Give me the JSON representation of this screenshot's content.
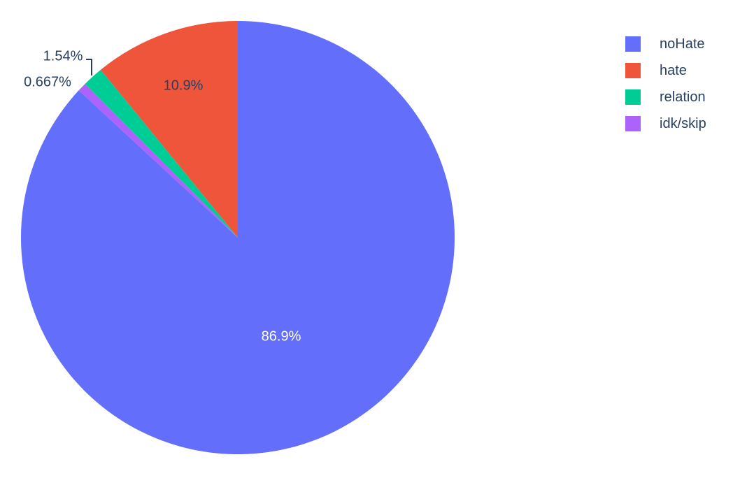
{
  "chart_data": {
    "type": "pie",
    "title": "",
    "unit": "%",
    "labels": [
      "noHate",
      "hate",
      "relation",
      "idk/skip"
    ],
    "values": [
      86.9,
      10.9,
      1.54,
      0.667
    ],
    "pct_labels": [
      "86.9%",
      "10.9%",
      "1.54%",
      "0.667%"
    ],
    "colors": [
      "#636efa",
      "#ef553b",
      "#00cc96",
      "#ab63fa"
    ],
    "label_placement": [
      "inside",
      "inside",
      "outside",
      "outside"
    ],
    "inside_label_colors": [
      "#ffffff",
      "#2a3f5f"
    ],
    "outside_label_color": "#2a3f5f",
    "layout_hints": {
      "legend_position": "top-right",
      "start_angle": "12 o'clock",
      "first_slice_direction": "clockwise",
      "remaining_slices": "stacked counterclockwise ending at 12 o'clock",
      "leader_line_on": "1.54%"
    }
  }
}
